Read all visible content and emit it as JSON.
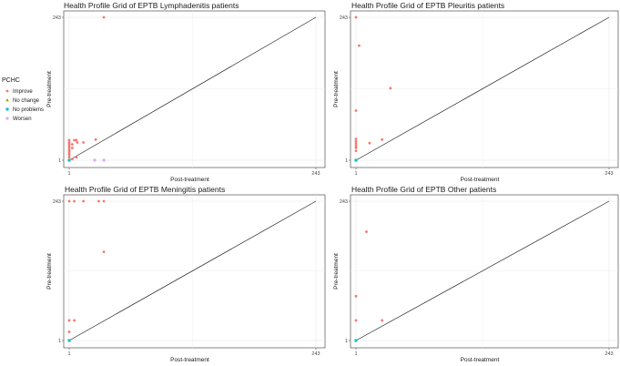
{
  "legend": {
    "title": "PCHC",
    "items": [
      {
        "label": "Improve",
        "color": "#F8766D",
        "shape": "circle"
      },
      {
        "label": "No change",
        "color": "#7CAE00",
        "shape": "triangle"
      },
      {
        "label": "No problems",
        "color": "#00BFC4",
        "shape": "square"
      },
      {
        "label": "Worsen",
        "color": "#C77CFF",
        "shape": "plus"
      }
    ]
  },
  "chart_data": [
    {
      "type": "scatter",
      "title": "Health Profile Grid of EPTB Lymphadenitis patients",
      "xlabel": "Post-treatment",
      "ylabel": "Pre-treatment",
      "xlim": [
        1,
        243
      ],
      "ylim": [
        1,
        243
      ],
      "xticks": [
        "1",
        "243"
      ],
      "yticks": [
        "1",
        "243"
      ],
      "reference_line": "y = x",
      "grid": true,
      "series": [
        {
          "name": "Improve",
          "points": [
            [
              35,
              243
            ],
            [
              1,
              35
            ],
            [
              1,
              31
            ],
            [
              1,
              28
            ],
            [
              1,
              25
            ],
            [
              1,
              22
            ],
            [
              1,
              19
            ],
            [
              1,
              16
            ],
            [
              1,
              13
            ],
            [
              1,
              10
            ],
            [
              1,
              6
            ],
            [
              4,
              28
            ],
            [
              4,
              22
            ],
            [
              6,
              35
            ],
            [
              8,
              35
            ],
            [
              9,
              31
            ],
            [
              15,
              31
            ],
            [
              27,
              36
            ],
            [
              4,
              3
            ],
            [
              8,
              6
            ]
          ]
        },
        {
          "name": "No problems",
          "points": [
            [
              1,
              1
            ]
          ]
        },
        {
          "name": "Worsen",
          "points": [
            [
              26,
              1
            ],
            [
              35,
              1
            ]
          ]
        }
      ]
    },
    {
      "type": "scatter",
      "title": "Health Profile Grid of EPTB Pleuritis patients",
      "xlabel": "Post-treatment",
      "ylabel": "Pre-treatment",
      "xlim": [
        1,
        243
      ],
      "ylim": [
        1,
        243
      ],
      "xticks": [
        "1",
        "243"
      ],
      "yticks": [
        "1",
        "243"
      ],
      "reference_line": "y = x",
      "grid": true,
      "series": [
        {
          "name": "Improve",
          "points": [
            [
              1,
              243
            ],
            [
              4,
              195
            ],
            [
              34,
              123
            ],
            [
              1,
              85
            ],
            [
              1,
              37
            ],
            [
              1,
              33
            ],
            [
              1,
              29
            ],
            [
              1,
              25
            ],
            [
              1,
              22
            ],
            [
              1,
              17
            ],
            [
              14,
              30
            ],
            [
              26,
              36
            ]
          ]
        },
        {
          "name": "No problems",
          "points": [
            [
              1,
              1
            ]
          ]
        }
      ]
    },
    {
      "type": "scatter",
      "title": "Health Profile Grid of EPTB Meningitis patients",
      "xlabel": "Post-treatment",
      "ylabel": "Pre-treatment",
      "xlim": [
        1,
        243
      ],
      "ylim": [
        1,
        243
      ],
      "xticks": [
        "1",
        "243"
      ],
      "yticks": [
        "1",
        "243"
      ],
      "reference_line": "y = x",
      "grid": true,
      "series": [
        {
          "name": "Improve",
          "points": [
            [
              1,
              243
            ],
            [
              6,
              243
            ],
            [
              15,
              243
            ],
            [
              30,
              243
            ],
            [
              35,
              243
            ],
            [
              35,
              155
            ],
            [
              1,
              36
            ],
            [
              6,
              36
            ],
            [
              1,
              16
            ]
          ]
        },
        {
          "name": "No problems",
          "points": [
            [
              1,
              1
            ]
          ]
        }
      ]
    },
    {
      "type": "scatter",
      "title": "Health Profile Grid of EPTB Other patients",
      "xlabel": "Post-treatment",
      "ylabel": "Pre-treatment",
      "xlim": [
        1,
        243
      ],
      "ylim": [
        1,
        243
      ],
      "xticks": [
        "1",
        "243"
      ],
      "yticks": [
        "1",
        "243"
      ],
      "reference_line": "y = x",
      "grid": true,
      "series": [
        {
          "name": "Improve",
          "points": [
            [
              11,
              190
            ],
            [
              1,
              78
            ],
            [
              1,
              36
            ],
            [
              26,
              36
            ]
          ]
        },
        {
          "name": "No problems",
          "points": [
            [
              1,
              1
            ]
          ]
        }
      ]
    }
  ]
}
